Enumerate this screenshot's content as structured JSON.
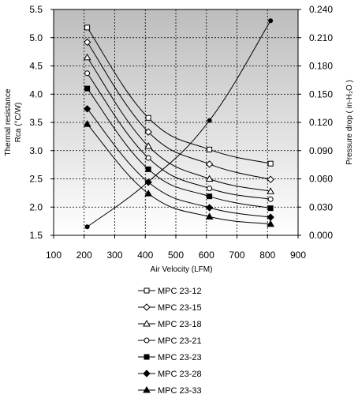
{
  "chart_data": {
    "type": "line",
    "title": "",
    "xlabel": "Air Velocity (LFM)",
    "ylabel_left": [
      "Thermal resistance",
      "Rca (°C/W)"
    ],
    "ylabel_right": "Pressure drop  ( in-H₂O )",
    "xlim": [
      100,
      900
    ],
    "xticks": [
      100,
      200,
      300,
      400,
      500,
      600,
      700,
      800,
      900
    ],
    "ylim_left": [
      1.5,
      5.5
    ],
    "yticks_left": [
      "1.5",
      "2.0",
      "2.5",
      "3.0",
      "3.5",
      "4.0",
      "4.5",
      "5.0",
      "5.5"
    ],
    "ylim_right": [
      0.0,
      0.24
    ],
    "yticks_right": [
      "0.000",
      "0.030",
      "0.060",
      "0.090",
      "0.120",
      "0.150",
      "0.180",
      "0.210",
      "0.240"
    ],
    "grid": true,
    "legend_position": "bottom",
    "series": [
      {
        "name": "MPC 23-12",
        "marker": "square-open",
        "axis": "left",
        "x": [
          210,
          410,
          610,
          810
        ],
        "y": [
          5.18,
          3.58,
          3.02,
          2.77
        ]
      },
      {
        "name": "MPC 23-15",
        "marker": "diamond-open",
        "axis": "left",
        "x": [
          210,
          410,
          610,
          810
        ],
        "y": [
          4.92,
          3.33,
          2.76,
          2.49
        ]
      },
      {
        "name": "MPC 23-18",
        "marker": "triangle-open",
        "axis": "left",
        "x": [
          210,
          410,
          610,
          810
        ],
        "y": [
          4.65,
          3.08,
          2.5,
          2.28
        ]
      },
      {
        "name": "MPC 23-21",
        "marker": "circle-open",
        "axis": "left",
        "x": [
          210,
          410,
          610,
          810
        ],
        "y": [
          4.37,
          2.87,
          2.33,
          2.14
        ]
      },
      {
        "name": "MPC 23-23",
        "marker": "square-filled",
        "axis": "left",
        "x": [
          210,
          410,
          610,
          810
        ],
        "y": [
          4.1,
          2.67,
          2.19,
          1.98
        ]
      },
      {
        "name": "MPC 23-28",
        "marker": "diamond-filled",
        "axis": "left",
        "x": [
          210,
          410,
          610,
          810
        ],
        "y": [
          3.74,
          2.44,
          1.99,
          1.82
        ]
      },
      {
        "name": "MPC 23-33",
        "marker": "triangle-filled",
        "axis": "left",
        "x": [
          210,
          410,
          610,
          810
        ],
        "y": [
          3.47,
          2.24,
          1.83,
          1.7
        ]
      }
    ],
    "pressure_series": {
      "marker": "circle-filled",
      "axis": "right",
      "x": [
        210,
        410,
        610,
        810
      ],
      "y": [
        0.009,
        0.057,
        0.122,
        0.228
      ]
    }
  }
}
